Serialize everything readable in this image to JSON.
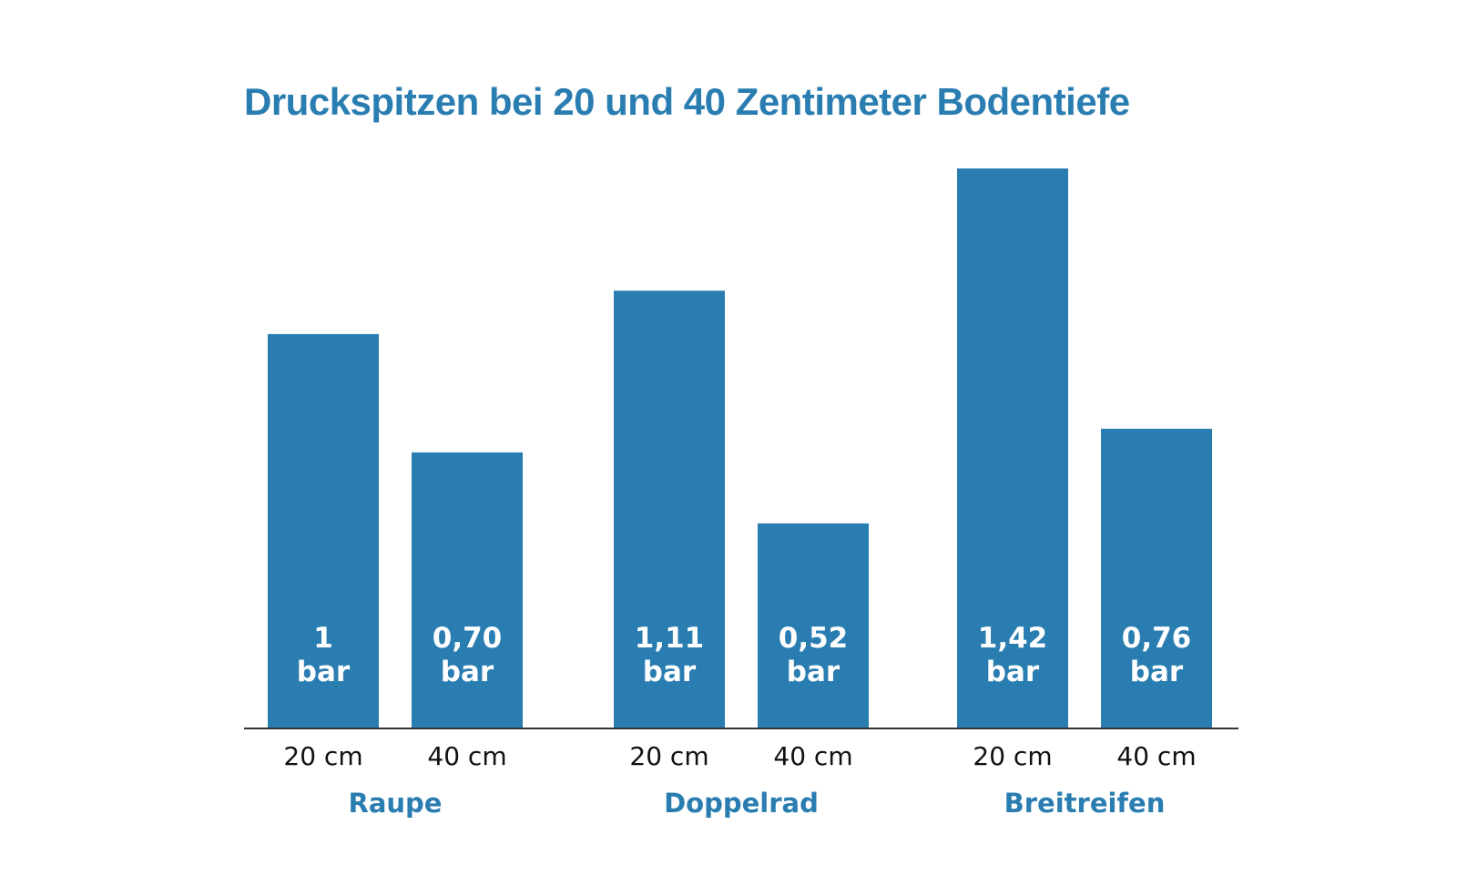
{
  "chart_data": {
    "type": "bar",
    "title": "Druckspitzen bei 20 und 40 Zentimeter Bodentiefe",
    "unit": "bar",
    "xlabel": "",
    "ylabel": "",
    "ylim": [
      0,
      1.45
    ],
    "grid": false,
    "groups": [
      {
        "name": "Raupe",
        "bars": [
          {
            "category": "20 cm",
            "value": 1.0,
            "label": "1"
          },
          {
            "category": "40 cm",
            "value": 0.7,
            "label": "0,70"
          }
        ]
      },
      {
        "name": "Doppelrad",
        "bars": [
          {
            "category": "20 cm",
            "value": 1.11,
            "label": "1,11"
          },
          {
            "category": "40 cm",
            "value": 0.52,
            "label": "0,52"
          }
        ]
      },
      {
        "name": "Breitreifen",
        "bars": [
          {
            "category": "20 cm",
            "value": 1.42,
            "label": "1,42"
          },
          {
            "category": "40 cm",
            "value": 0.76,
            "label": "0,76"
          }
        ]
      }
    ],
    "colors": {
      "bar": "#2a7db1",
      "title": "#2a7db1",
      "group_label": "#2a7db1",
      "axis": "#333333",
      "value_text": "#ffffff",
      "depth_text": "#111111"
    }
  }
}
